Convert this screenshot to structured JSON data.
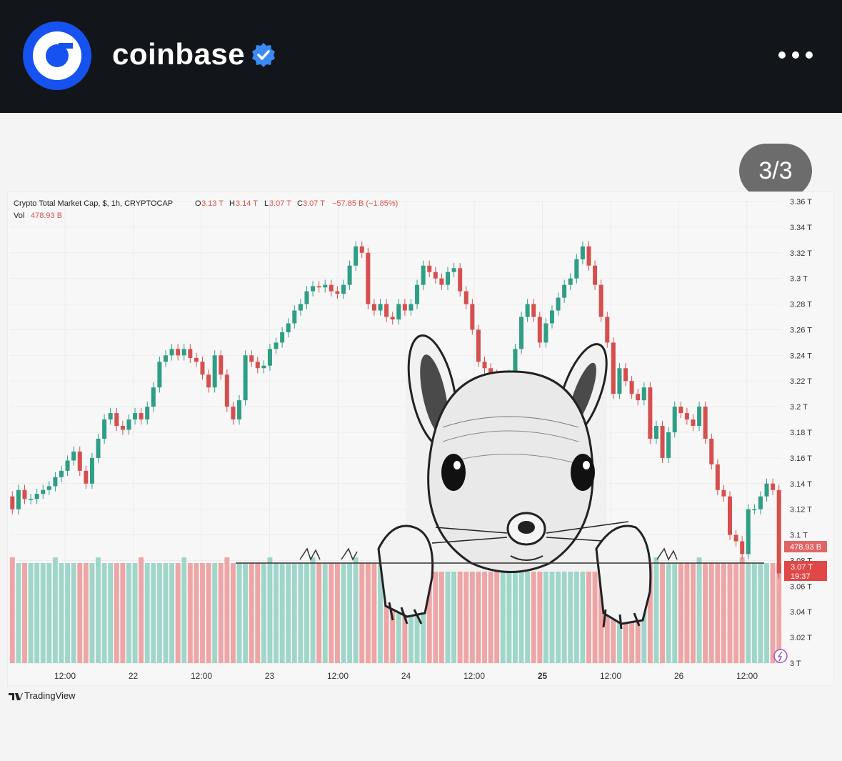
{
  "header": {
    "account_name": "coinbase",
    "verified": true,
    "avatar_icon": "coinbase-logo-icon",
    "more_icon": "more-options-icon",
    "colors": {
      "background": "#12151a",
      "brand": "#1652f0",
      "verified": "#3a8af5"
    }
  },
  "post": {
    "counter": "3/3",
    "illustration": "squirrel-peeking-icon"
  },
  "chart_data": {
    "type": "candlestick",
    "title": "Crypto Total Market Cap, $, 1h, CRYPTOCAP",
    "ohlc": {
      "o_label": "O",
      "o": "3.13 T",
      "h_label": "H",
      "h": "3.14 T",
      "l_label": "L",
      "l": "3.07 T",
      "c_label": "C",
      "c": "3.07 T",
      "change": "−57.85 B (−1.85%)"
    },
    "volume": {
      "label": "Vol",
      "value": "478.93 B"
    },
    "y_ticks": [
      "3.36 T",
      "3.34 T",
      "3.32 T",
      "3.3 T",
      "3.28 T",
      "3.26 T",
      "3.24 T",
      "3.22 T",
      "3.2 T",
      "3.18 T",
      "3.16 T",
      "3.14 T",
      "3.12 T",
      "3.1 T",
      "3.08 T",
      "3.06 T",
      "3.04 T",
      "3.02 T",
      "3 T"
    ],
    "x_ticks": [
      "12:00",
      "22",
      "12:00",
      "23",
      "12:00",
      "24",
      "12:00",
      "25",
      "12:00",
      "26",
      "12:00"
    ],
    "ylim": [
      3.0,
      3.36
    ],
    "price_labels": {
      "volume": "478.93 B",
      "last": "3.07 T",
      "countdown": "19:37"
    },
    "closes": [
      3.12,
      3.135,
      3.128,
      3.128,
      3.132,
      3.135,
      3.138,
      3.145,
      3.15,
      3.158,
      3.165,
      3.15,
      3.14,
      3.16,
      3.175,
      3.19,
      3.195,
      3.185,
      3.182,
      3.19,
      3.195,
      3.19,
      3.2,
      3.215,
      3.235,
      3.24,
      3.245,
      3.24,
      3.245,
      3.238,
      3.235,
      3.225,
      3.215,
      3.24,
      3.225,
      3.2,
      3.19,
      3.205,
      3.24,
      3.235,
      3.23,
      3.232,
      3.245,
      3.25,
      3.258,
      3.265,
      3.275,
      3.28,
      3.29,
      3.294,
      3.293,
      3.295,
      3.29,
      3.288,
      3.295,
      3.31,
      3.325,
      3.32,
      3.28,
      3.275,
      3.28,
      3.27,
      3.268,
      3.28,
      3.275,
      3.28,
      3.295,
      3.31,
      3.305,
      3.3,
      3.295,
      3.305,
      3.308,
      3.29,
      3.28,
      3.26,
      3.235,
      3.23,
      3.225,
      3.215,
      3.22,
      3.225,
      3.245,
      3.27,
      3.28,
      3.27,
      3.25,
      3.265,
      3.275,
      3.285,
      3.295,
      3.3,
      3.315,
      3.325,
      3.31,
      3.295,
      3.27,
      3.25,
      3.21,
      3.23,
      3.22,
      3.21,
      3.205,
      3.215,
      3.175,
      3.185,
      3.16,
      3.18,
      3.2,
      3.195,
      3.19,
      3.185,
      3.2,
      3.175,
      3.155,
      3.135,
      3.13,
      3.1,
      3.095,
      3.085,
      3.12,
      3.12,
      3.13,
      3.14,
      3.135,
      3.07
    ]
  },
  "footer": {
    "brand": "TradingView"
  }
}
